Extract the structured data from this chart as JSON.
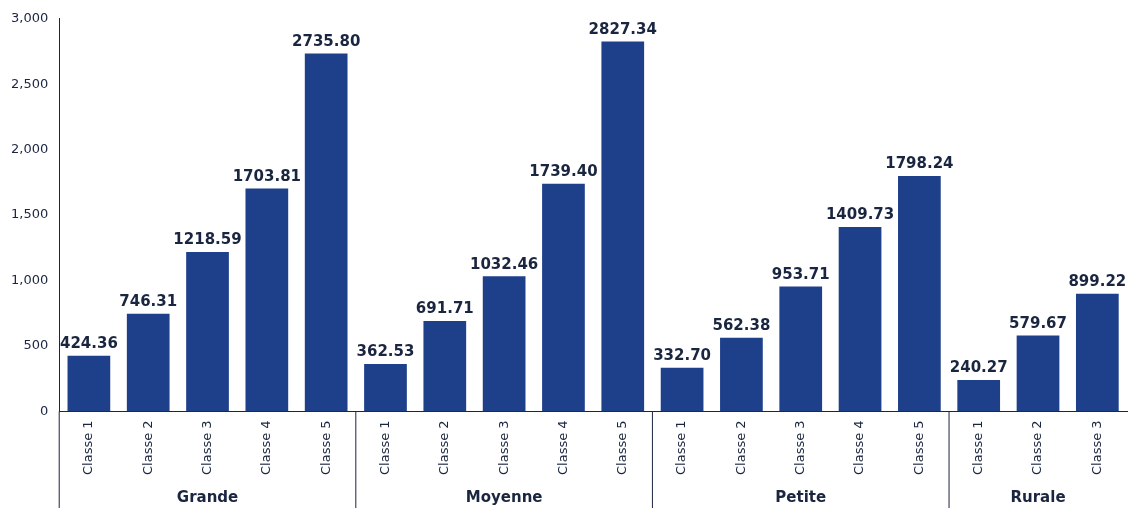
{
  "chart_data": {
    "type": "bar",
    "categories": [
      "Classe 1",
      "Classe 2",
      "Classe 3",
      "Classe 4",
      "Classe 5",
      "Classe 1",
      "Classe 2",
      "Classe 3",
      "Classe 4",
      "Classe 5",
      "Classe 1",
      "Classe 2",
      "Classe 3",
      "Classe 4",
      "Classe 5",
      "Classe 1",
      "Classe 2",
      "Classe 3"
    ],
    "values": [
      424.36,
      746.31,
      1218.59,
      1703.81,
      2735.8,
      362.53,
      691.71,
      1032.46,
      1739.4,
      2827.34,
      332.7,
      562.38,
      953.71,
      1409.73,
      1798.24,
      240.27,
      579.67,
      899.22
    ],
    "value_labels": [
      "424.36",
      "746.31",
      "1218.59",
      "1703.81",
      "2735.80",
      "362.53",
      "691.71",
      "1032.46",
      "1739.40",
      "2827.34",
      "332.70",
      "562.38",
      "953.71",
      "1409.73",
      "1798.24",
      "240.27",
      "579.67",
      "899.22"
    ],
    "color": "#1e3f8a",
    "annotations": [
      "Grande",
      "Moyenne",
      "Petite",
      "Rurale"
    ],
    "ylim": [
      0,
      3000
    ],
    "yticks": [
      {
        "value": 0,
        "label": "0"
      },
      {
        "value": 500,
        "label": "500"
      },
      {
        "value": 1000,
        "label": "1,000"
      },
      {
        "value": 1500,
        "label": "1,500"
      },
      {
        "value": 2000,
        "label": "2,000"
      },
      {
        "value": 2500,
        "label": "2,500"
      },
      {
        "value": 3000,
        "label": "3,000"
      }
    ],
    "grid": false,
    "legend": false
  }
}
